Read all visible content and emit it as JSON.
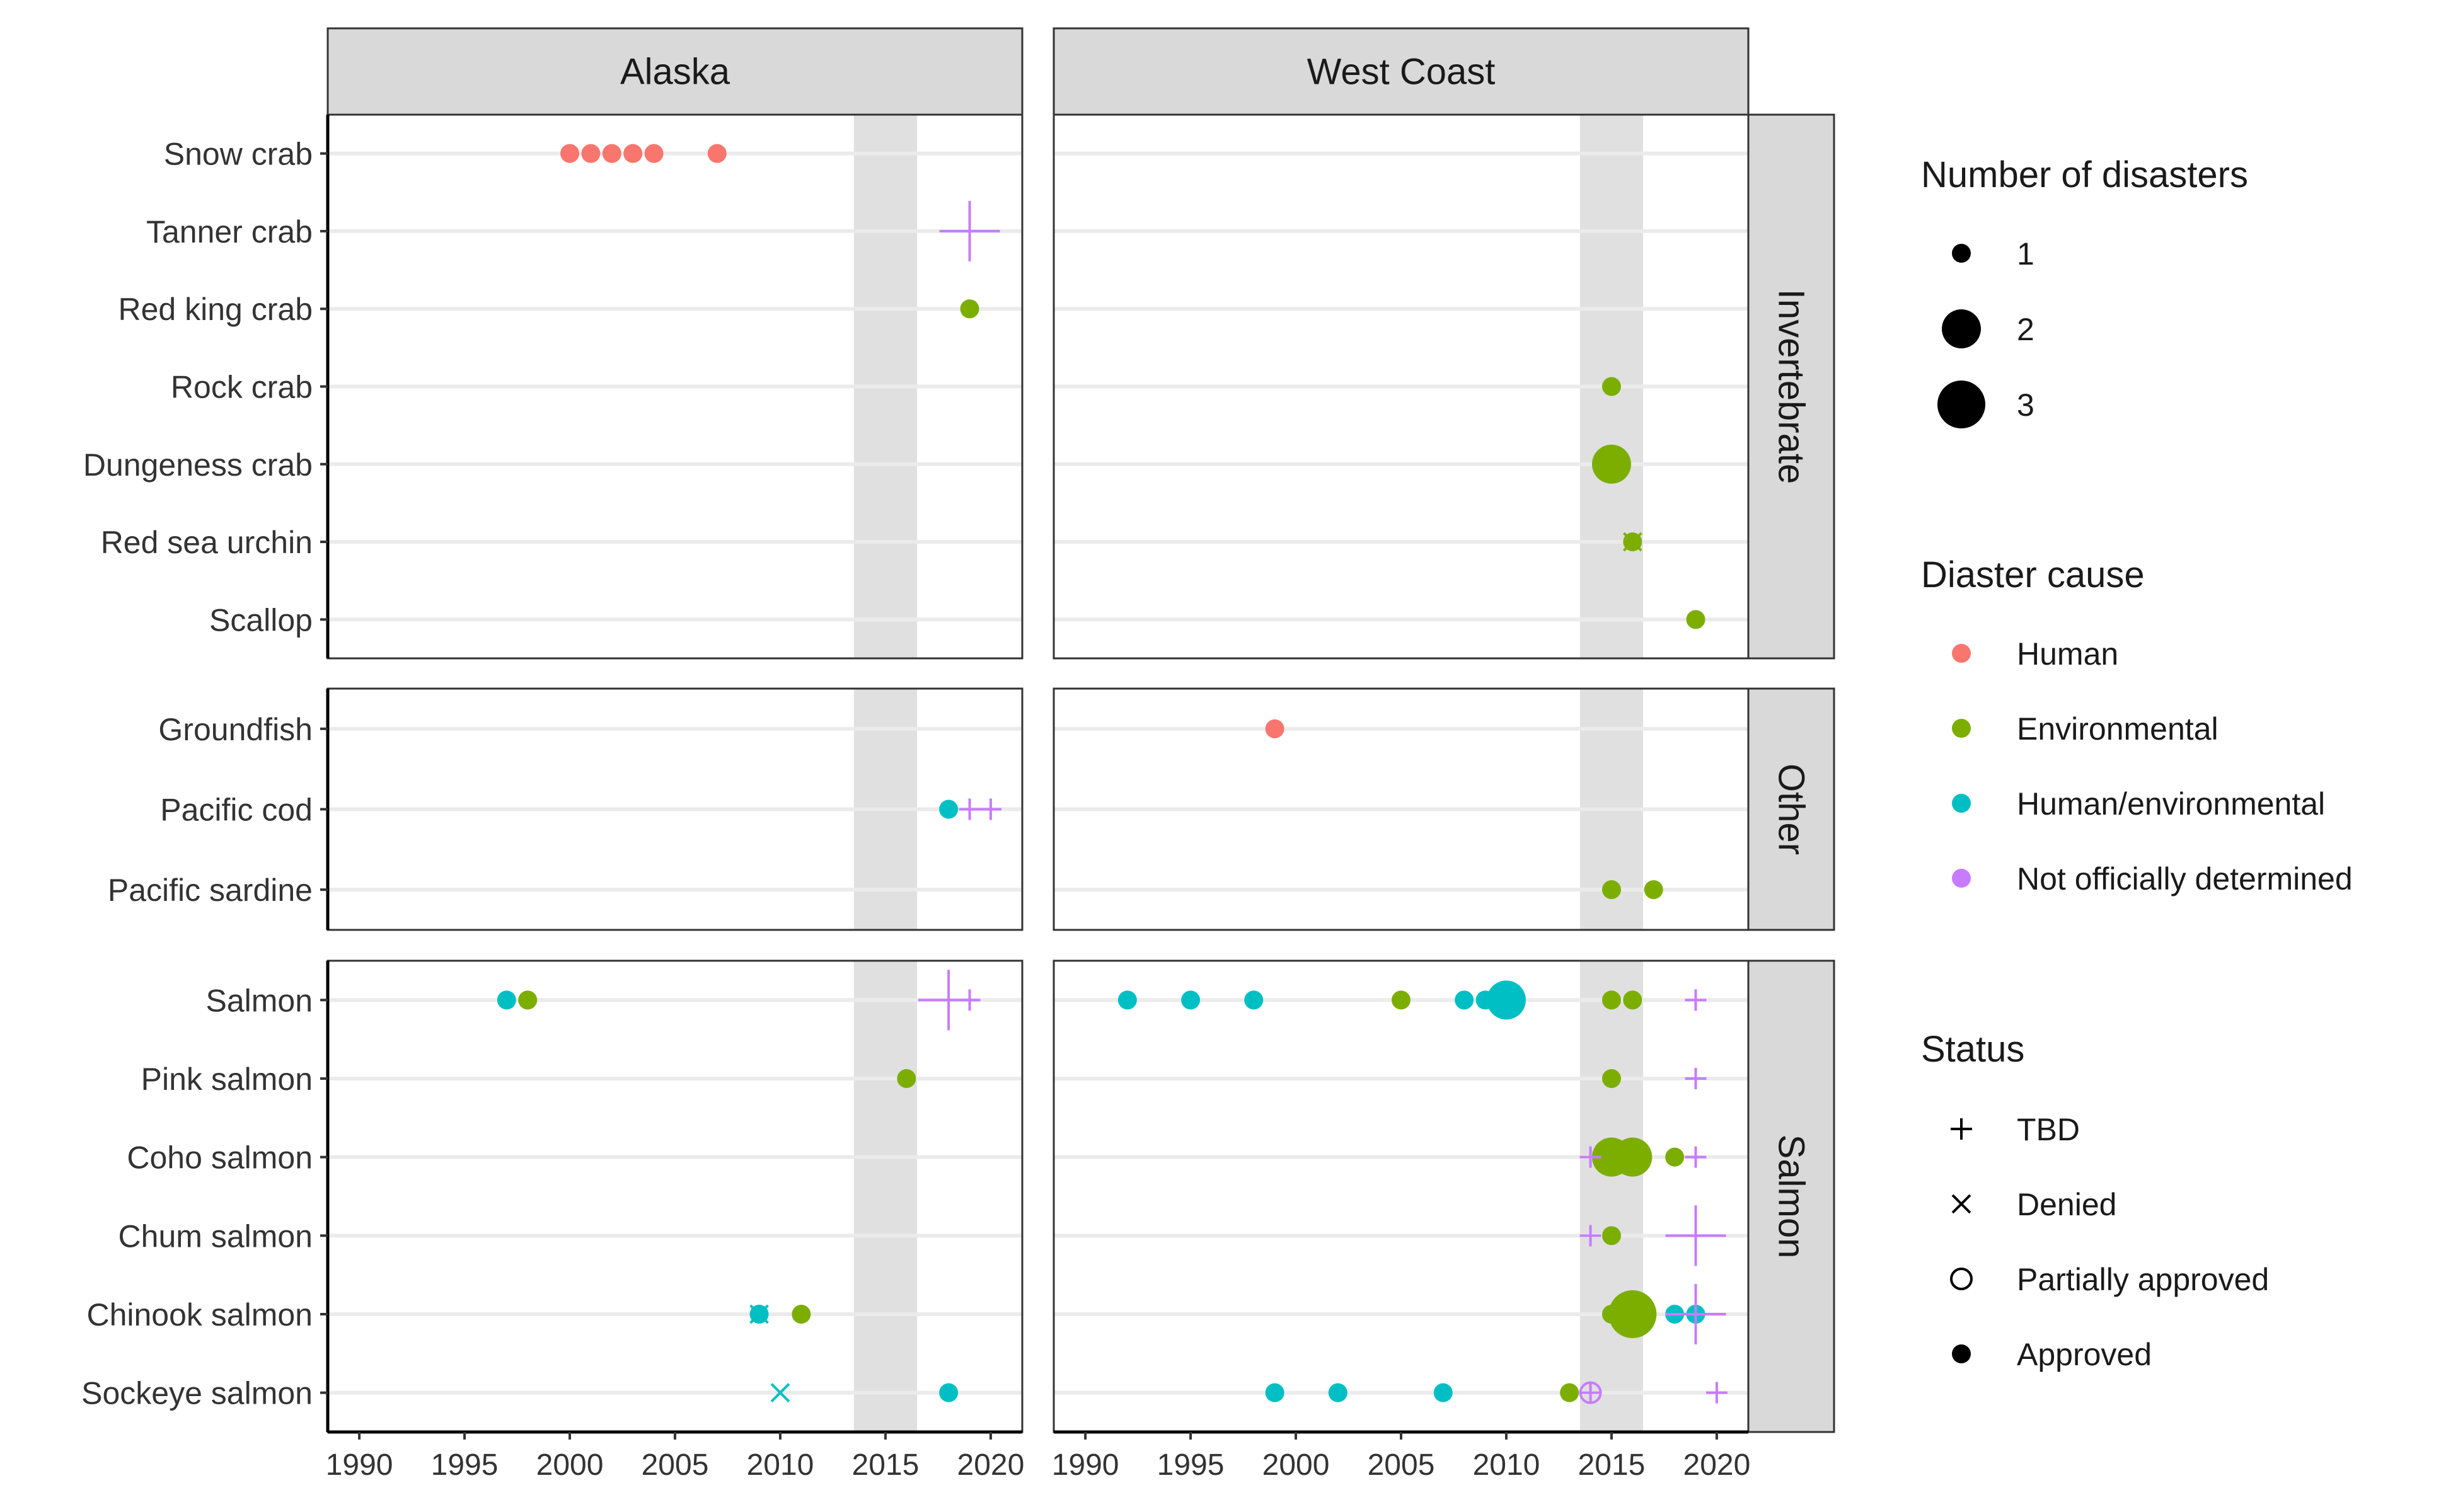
{
  "chart_data": {
    "type": "scatter",
    "facets": {
      "columns": [
        "Alaska",
        "West Coast"
      ],
      "rows": [
        "Invertebrate",
        "Other",
        "Salmon"
      ]
    },
    "row_categories": {
      "Invertebrate": [
        "Snow crab",
        "Tanner crab",
        "Red king crab",
        "Rock crab",
        "Dungeness crab",
        "Red sea urchin",
        "Scallop"
      ],
      "Other": [
        "Groundfish",
        "Pacific cod",
        "Pacific sardine"
      ],
      "Salmon": [
        "Salmon",
        "Pink salmon",
        "Coho salmon",
        "Chum salmon",
        "Chinook salmon",
        "Sockeye salmon"
      ]
    },
    "xlim": [
      1988.5,
      2021.5
    ],
    "x_ticks": [
      "1990",
      "1995",
      "2000",
      "2005",
      "2010",
      "2015",
      "2020"
    ],
    "shaded_band": [
      2013.5,
      2016.5
    ],
    "grid": "horizontal",
    "legend_position": "right",
    "colors": {
      "Human": "#F8766D",
      "Environmental": "#7CAE00",
      "Human/environmental": "#00BFC4",
      "Not officially determined": "#C77CFF"
    },
    "legend": {
      "size_title": "Number of disasters",
      "size_items": [
        {
          "label": "1",
          "n": 1
        },
        {
          "label": "2",
          "n": 2
        },
        {
          "label": "3",
          "n": 3
        }
      ],
      "cause_title": "Diaster cause",
      "cause_items": [
        "Human",
        "Environmental",
        "Human/environmental",
        "Not officially determined"
      ],
      "status_title": "Status",
      "status_items": [
        {
          "label": "TBD",
          "shape": "plus"
        },
        {
          "label": "Denied",
          "shape": "cross"
        },
        {
          "label": "Partially approved",
          "shape": "open-circle"
        },
        {
          "label": "Approved",
          "shape": "dot"
        }
      ]
    },
    "points": [
      {
        "region": "Alaska",
        "group": "Invertebrate",
        "species": "Snow crab",
        "year": 2000,
        "cause": "Human",
        "status": "Approved",
        "n": 1
      },
      {
        "region": "Alaska",
        "group": "Invertebrate",
        "species": "Snow crab",
        "year": 2001,
        "cause": "Human",
        "status": "Approved",
        "n": 1
      },
      {
        "region": "Alaska",
        "group": "Invertebrate",
        "species": "Snow crab",
        "year": 2002,
        "cause": "Human",
        "status": "Approved",
        "n": 1
      },
      {
        "region": "Alaska",
        "group": "Invertebrate",
        "species": "Snow crab",
        "year": 2003,
        "cause": "Human",
        "status": "Approved",
        "n": 1
      },
      {
        "region": "Alaska",
        "group": "Invertebrate",
        "species": "Snow crab",
        "year": 2004,
        "cause": "Human",
        "status": "Approved",
        "n": 1
      },
      {
        "region": "Alaska",
        "group": "Invertebrate",
        "species": "Snow crab",
        "year": 2007,
        "cause": "Human",
        "status": "Approved",
        "n": 1
      },
      {
        "region": "Alaska",
        "group": "Invertebrate",
        "species": "Tanner crab",
        "year": 2019,
        "cause": "Not officially determined",
        "status": "TBD",
        "n": 3
      },
      {
        "region": "Alaska",
        "group": "Invertebrate",
        "species": "Red king crab",
        "year": 2019,
        "cause": "Environmental",
        "status": "Approved",
        "n": 1
      },
      {
        "region": "West Coast",
        "group": "Invertebrate",
        "species": "Rock crab",
        "year": 2015,
        "cause": "Environmental",
        "status": "Approved",
        "n": 1
      },
      {
        "region": "West Coast",
        "group": "Invertebrate",
        "species": "Dungeness crab",
        "year": 2015,
        "cause": "Environmental",
        "status": "Approved",
        "n": 2
      },
      {
        "region": "West Coast",
        "group": "Invertebrate",
        "species": "Red sea urchin",
        "year": 2016,
        "cause": "Environmental",
        "status": "Approved",
        "n": 1
      },
      {
        "region": "West Coast",
        "group": "Invertebrate",
        "species": "Red sea urchin",
        "year": 2016,
        "cause": "Environmental",
        "status": "Denied",
        "n": 1
      },
      {
        "region": "West Coast",
        "group": "Invertebrate",
        "species": "Scallop",
        "year": 2019,
        "cause": "Environmental",
        "status": "Approved",
        "n": 1
      },
      {
        "region": "Alaska",
        "group": "Other",
        "species": "Pacific cod",
        "year": 2018,
        "cause": "Human/environmental",
        "status": "Approved",
        "n": 1
      },
      {
        "region": "Alaska",
        "group": "Other",
        "species": "Pacific cod",
        "year": 2019,
        "cause": "Not officially determined",
        "status": "TBD",
        "n": 1
      },
      {
        "region": "Alaska",
        "group": "Other",
        "species": "Pacific cod",
        "year": 2020,
        "cause": "Not officially determined",
        "status": "TBD",
        "n": 1
      },
      {
        "region": "West Coast",
        "group": "Other",
        "species": "Groundfish",
        "year": 1999,
        "cause": "Human",
        "status": "Approved",
        "n": 1
      },
      {
        "region": "West Coast",
        "group": "Other",
        "species": "Pacific sardine",
        "year": 2015,
        "cause": "Environmental",
        "status": "Approved",
        "n": 1
      },
      {
        "region": "West Coast",
        "group": "Other",
        "species": "Pacific sardine",
        "year": 2017,
        "cause": "Environmental",
        "status": "Approved",
        "n": 1
      },
      {
        "region": "Alaska",
        "group": "Salmon",
        "species": "Salmon",
        "year": 1997,
        "cause": "Human/environmental",
        "status": "Approved",
        "n": 1
      },
      {
        "region": "Alaska",
        "group": "Salmon",
        "species": "Salmon",
        "year": 1998,
        "cause": "Environmental",
        "status": "Approved",
        "n": 1
      },
      {
        "region": "Alaska",
        "group": "Salmon",
        "species": "Salmon",
        "year": 2018,
        "cause": "Not officially determined",
        "status": "TBD",
        "n": 3
      },
      {
        "region": "Alaska",
        "group": "Salmon",
        "species": "Salmon",
        "year": 2019,
        "cause": "Not officially determined",
        "status": "TBD",
        "n": 1
      },
      {
        "region": "Alaska",
        "group": "Salmon",
        "species": "Pink salmon",
        "year": 2016,
        "cause": "Environmental",
        "status": "Approved",
        "n": 1
      },
      {
        "region": "Alaska",
        "group": "Salmon",
        "species": "Chinook salmon",
        "year": 2009,
        "cause": "Human/environmental",
        "status": "Approved",
        "n": 1
      },
      {
        "region": "Alaska",
        "group": "Salmon",
        "species": "Chinook salmon",
        "year": 2009,
        "cause": "Human/environmental",
        "status": "Denied",
        "n": 1
      },
      {
        "region": "Alaska",
        "group": "Salmon",
        "species": "Chinook salmon",
        "year": 2011,
        "cause": "Environmental",
        "status": "Approved",
        "n": 1
      },
      {
        "region": "Alaska",
        "group": "Salmon",
        "species": "Sockeye salmon",
        "year": 2010,
        "cause": "Human/environmental",
        "status": "Denied",
        "n": 1
      },
      {
        "region": "Alaska",
        "group": "Salmon",
        "species": "Sockeye salmon",
        "year": 2018,
        "cause": "Human/environmental",
        "status": "Approved",
        "n": 1
      },
      {
        "region": "West Coast",
        "group": "Salmon",
        "species": "Salmon",
        "year": 1992,
        "cause": "Human/environmental",
        "status": "Approved",
        "n": 1
      },
      {
        "region": "West Coast",
        "group": "Salmon",
        "species": "Salmon",
        "year": 1995,
        "cause": "Human/environmental",
        "status": "Approved",
        "n": 1
      },
      {
        "region": "West Coast",
        "group": "Salmon",
        "species": "Salmon",
        "year": 1998,
        "cause": "Human/environmental",
        "status": "Approved",
        "n": 1
      },
      {
        "region": "West Coast",
        "group": "Salmon",
        "species": "Salmon",
        "year": 2005,
        "cause": "Environmental",
        "status": "Approved",
        "n": 1
      },
      {
        "region": "West Coast",
        "group": "Salmon",
        "species": "Salmon",
        "year": 2008,
        "cause": "Human/environmental",
        "status": "Approved",
        "n": 1
      },
      {
        "region": "West Coast",
        "group": "Salmon",
        "species": "Salmon",
        "year": 2009,
        "cause": "Human/environmental",
        "status": "Approved",
        "n": 1
      },
      {
        "region": "West Coast",
        "group": "Salmon",
        "species": "Salmon",
        "year": 2010,
        "cause": "Human/environmental",
        "status": "Approved",
        "n": 2
      },
      {
        "region": "West Coast",
        "group": "Salmon",
        "species": "Salmon",
        "year": 2015,
        "cause": "Environmental",
        "status": "Approved",
        "n": 1
      },
      {
        "region": "West Coast",
        "group": "Salmon",
        "species": "Salmon",
        "year": 2016,
        "cause": "Environmental",
        "status": "Approved",
        "n": 1
      },
      {
        "region": "West Coast",
        "group": "Salmon",
        "species": "Salmon",
        "year": 2019,
        "cause": "Not officially determined",
        "status": "TBD",
        "n": 1
      },
      {
        "region": "West Coast",
        "group": "Salmon",
        "species": "Pink salmon",
        "year": 2015,
        "cause": "Environmental",
        "status": "Approved",
        "n": 1
      },
      {
        "region": "West Coast",
        "group": "Salmon",
        "species": "Pink salmon",
        "year": 2019,
        "cause": "Not officially determined",
        "status": "TBD",
        "n": 1
      },
      {
        "region": "West Coast",
        "group": "Salmon",
        "species": "Coho salmon",
        "year": 2014,
        "cause": "Not officially determined",
        "status": "TBD",
        "n": 1
      },
      {
        "region": "West Coast",
        "group": "Salmon",
        "species": "Coho salmon",
        "year": 2015,
        "cause": "Environmental",
        "status": "Approved",
        "n": 2
      },
      {
        "region": "West Coast",
        "group": "Salmon",
        "species": "Coho salmon",
        "year": 2016,
        "cause": "Environmental",
        "status": "Approved",
        "n": 2
      },
      {
        "region": "West Coast",
        "group": "Salmon",
        "species": "Coho salmon",
        "year": 2018,
        "cause": "Environmental",
        "status": "Approved",
        "n": 1
      },
      {
        "region": "West Coast",
        "group": "Salmon",
        "species": "Coho salmon",
        "year": 2019,
        "cause": "Not officially determined",
        "status": "TBD",
        "n": 1
      },
      {
        "region": "West Coast",
        "group": "Salmon",
        "species": "Chum salmon",
        "year": 2014,
        "cause": "Not officially determined",
        "status": "TBD",
        "n": 1
      },
      {
        "region": "West Coast",
        "group": "Salmon",
        "species": "Chum salmon",
        "year": 2015,
        "cause": "Environmental",
        "status": "Approved",
        "n": 1
      },
      {
        "region": "West Coast",
        "group": "Salmon",
        "species": "Chum salmon",
        "year": 2019,
        "cause": "Not officially determined",
        "status": "TBD",
        "n": 3
      },
      {
        "region": "West Coast",
        "group": "Salmon",
        "species": "Chinook salmon",
        "year": 2015,
        "cause": "Environmental",
        "status": "Approved",
        "n": 1
      },
      {
        "region": "West Coast",
        "group": "Salmon",
        "species": "Chinook salmon",
        "year": 2016,
        "cause": "Environmental",
        "status": "Approved",
        "n": 3
      },
      {
        "region": "West Coast",
        "group": "Salmon",
        "species": "Chinook salmon",
        "year": 2018,
        "cause": "Human/environmental",
        "status": "Approved",
        "n": 1
      },
      {
        "region": "West Coast",
        "group": "Salmon",
        "species": "Chinook salmon",
        "year": 2019,
        "cause": "Human/environmental",
        "status": "Approved",
        "n": 1
      },
      {
        "region": "West Coast",
        "group": "Salmon",
        "species": "Chinook salmon",
        "year": 2019,
        "cause": "Not officially determined",
        "status": "TBD",
        "n": 3
      },
      {
        "region": "West Coast",
        "group": "Salmon",
        "species": "Sockeye salmon",
        "year": 1999,
        "cause": "Human/environmental",
        "status": "Approved",
        "n": 1
      },
      {
        "region": "West Coast",
        "group": "Salmon",
        "species": "Sockeye salmon",
        "year": 2002,
        "cause": "Human/environmental",
        "status": "Approved",
        "n": 1
      },
      {
        "region": "West Coast",
        "group": "Salmon",
        "species": "Sockeye salmon",
        "year": 2007,
        "cause": "Human/environmental",
        "status": "Approved",
        "n": 1
      },
      {
        "region": "West Coast",
        "group": "Salmon",
        "species": "Sockeye salmon",
        "year": 2013,
        "cause": "Environmental",
        "status": "Approved",
        "n": 1
      },
      {
        "region": "West Coast",
        "group": "Salmon",
        "species": "Sockeye salmon",
        "year": 2014,
        "cause": "Not officially determined",
        "status": "Partially approved",
        "n": 1
      },
      {
        "region": "West Coast",
        "group": "Salmon",
        "species": "Sockeye salmon",
        "year": 2014,
        "cause": "Not officially determined",
        "status": "TBD",
        "n": 1
      },
      {
        "region": "West Coast",
        "group": "Salmon",
        "species": "Sockeye salmon",
        "year": 2020,
        "cause": "Not officially determined",
        "status": "TBD",
        "n": 1
      }
    ]
  }
}
